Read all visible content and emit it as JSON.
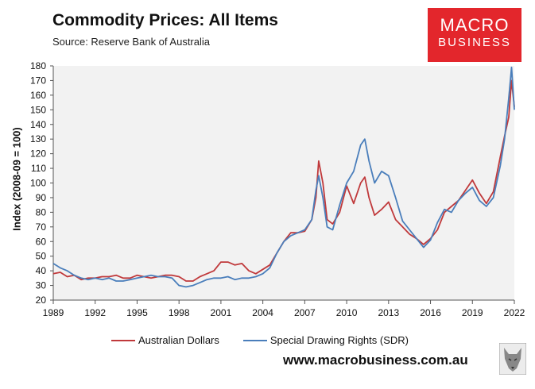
{
  "title": "Commodity Prices: All Items",
  "source": "Source: Reserve Bank of Australia",
  "logo": {
    "line1": "MACRO",
    "line2": "BUSINESS"
  },
  "website": "www.macrobusiness.com.au",
  "colors": {
    "aud": "#c0393b",
    "sdr": "#4a7ebb",
    "plot_bg": "#f2f2f2",
    "logo_bg": "#e3262c"
  },
  "chart_data": {
    "type": "line",
    "ylabel": "Index (2008-09 = 100)",
    "xlabel": "",
    "xlim": [
      1989,
      2022
    ],
    "ylim": [
      20,
      180
    ],
    "x_ticks": [
      1989,
      1992,
      1995,
      1998,
      2001,
      2004,
      2007,
      2010,
      2013,
      2016,
      2019,
      2022
    ],
    "y_ticks": [
      20,
      30,
      40,
      50,
      60,
      70,
      80,
      90,
      100,
      110,
      120,
      130,
      140,
      150,
      160,
      170,
      180
    ],
    "grid": false,
    "legend_position": "bottom",
    "series": [
      {
        "name": "Australian Dollars",
        "color": "#c0393b",
        "x": [
          1989.0,
          1989.5,
          1990.0,
          1990.5,
          1991.0,
          1991.5,
          1992.0,
          1992.5,
          1993.0,
          1993.5,
          1994.0,
          1994.5,
          1995.0,
          1995.5,
          1996.0,
          1996.5,
          1997.0,
          1997.5,
          1998.0,
          1998.5,
          1999.0,
          1999.5,
          2000.0,
          2000.5,
          2001.0,
          2001.5,
          2002.0,
          2002.5,
          2003.0,
          2003.5,
          2004.0,
          2004.5,
          2005.0,
          2005.5,
          2006.0,
          2006.5,
          2007.0,
          2007.5,
          2007.8,
          2008.0,
          2008.3,
          2008.6,
          2009.0,
          2009.5,
          2010.0,
          2010.5,
          2011.0,
          2011.3,
          2011.6,
          2012.0,
          2012.5,
          2013.0,
          2013.5,
          2014.0,
          2014.5,
          2015.0,
          2015.5,
          2016.0,
          2016.5,
          2017.0,
          2017.5,
          2018.0,
          2018.5,
          2019.0,
          2019.5,
          2020.0,
          2020.5,
          2021.0,
          2021.3,
          2021.6,
          2021.8,
          2022.0
        ],
        "values": [
          38,
          39,
          36,
          37,
          34,
          35,
          35,
          36,
          36,
          37,
          35,
          35,
          37,
          36,
          35,
          36,
          37,
          37,
          36,
          33,
          33,
          36,
          38,
          40,
          46,
          46,
          44,
          45,
          40,
          38,
          41,
          44,
          52,
          60,
          66,
          66,
          67,
          75,
          90,
          115,
          100,
          75,
          72,
          80,
          98,
          86,
          100,
          104,
          90,
          78,
          82,
          87,
          75,
          70,
          65,
          62,
          58,
          62,
          68,
          80,
          84,
          88,
          95,
          102,
          93,
          86,
          94,
          118,
          132,
          145,
          170,
          152
        ]
      },
      {
        "name": "Special Drawing Rights (SDR)",
        "color": "#4a7ebb",
        "x": [
          1989.0,
          1989.5,
          1990.0,
          1990.5,
          1991.0,
          1991.5,
          1992.0,
          1992.5,
          1993.0,
          1993.5,
          1994.0,
          1994.5,
          1995.0,
          1995.5,
          1996.0,
          1996.5,
          1997.0,
          1997.5,
          1998.0,
          1998.5,
          1999.0,
          1999.5,
          2000.0,
          2000.5,
          2001.0,
          2001.5,
          2002.0,
          2002.5,
          2003.0,
          2003.5,
          2004.0,
          2004.5,
          2005.0,
          2005.5,
          2006.0,
          2006.5,
          2007.0,
          2007.5,
          2007.8,
          2008.0,
          2008.3,
          2008.6,
          2009.0,
          2009.5,
          2010.0,
          2010.5,
          2011.0,
          2011.3,
          2011.6,
          2012.0,
          2012.5,
          2013.0,
          2013.5,
          2014.0,
          2014.5,
          2015.0,
          2015.5,
          2016.0,
          2016.5,
          2017.0,
          2017.5,
          2018.0,
          2018.5,
          2019.0,
          2019.5,
          2020.0,
          2020.5,
          2021.0,
          2021.3,
          2021.6,
          2021.8,
          2022.0
        ],
        "values": [
          45,
          42,
          40,
          37,
          35,
          34,
          35,
          34,
          35,
          33,
          33,
          34,
          35,
          36,
          37,
          36,
          36,
          35,
          30,
          29,
          30,
          32,
          34,
          35,
          35,
          36,
          34,
          35,
          35,
          36,
          38,
          42,
          52,
          60,
          64,
          66,
          68,
          75,
          95,
          105,
          90,
          70,
          68,
          85,
          100,
          108,
          126,
          130,
          115,
          100,
          108,
          105,
          90,
          74,
          68,
          62,
          56,
          61,
          73,
          82,
          80,
          88,
          93,
          97,
          88,
          84,
          90,
          112,
          130,
          158,
          179,
          150
        ]
      }
    ]
  }
}
